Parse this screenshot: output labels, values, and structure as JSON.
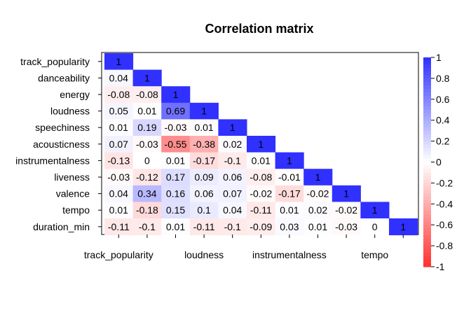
{
  "chart_data": {
    "type": "heatmap",
    "title": "Correlation matrix",
    "variables": [
      "track_popularity",
      "danceability",
      "energy",
      "loudness",
      "speechiness",
      "acousticness",
      "instrumentalness",
      "liveness",
      "valence",
      "tempo",
      "duration_min"
    ],
    "x_tick_labels": [
      "track_popularity",
      "loudness",
      "instrumentalness",
      "tempo"
    ],
    "lower_triangle": [
      [
        "1"
      ],
      [
        "0.04",
        "1"
      ],
      [
        "-0.08",
        "-0.08",
        "1"
      ],
      [
        "0.05",
        "0.01",
        "0.69",
        "1"
      ],
      [
        "0.01",
        "0.19",
        "-0.03",
        "0.01",
        "1"
      ],
      [
        "0.07",
        "-0.03",
        "-0.55",
        "-0.38",
        "0.02",
        "1"
      ],
      [
        "-0.13",
        "0",
        "0.01",
        "-0.17",
        "-0.1",
        "0.01",
        "1"
      ],
      [
        "-0.03",
        "-0.12",
        "0.17",
        "0.09",
        "0.06",
        "-0.08",
        "-0.01",
        "1"
      ],
      [
        "0.04",
        "0.34",
        "0.16",
        "0.06",
        "0.07",
        "-0.02",
        "-0.17",
        "-0.02",
        "1"
      ],
      [
        "0.01",
        "-0.18",
        "0.15",
        "0.1",
        "0.04",
        "-0.11",
        "0.01",
        "0.02",
        "-0.02",
        "1"
      ],
      [
        "-0.11",
        "-0.1",
        "0.01",
        "-0.11",
        "-0.1",
        "-0.09",
        "0.03",
        "0.01",
        "-0.03",
        "0",
        "1"
      ]
    ],
    "color_scale": {
      "range": [
        -1,
        1
      ],
      "low_color": "#FF3030",
      "mid_color": "#FFFFFF",
      "high_color": "#3030FF",
      "tick_labels": [
        "1",
        "0.8",
        "0.6",
        "0.4",
        "0.2",
        "0",
        "-0.2",
        "-0.4",
        "-0.6",
        "-0.8",
        "-1"
      ]
    }
  }
}
